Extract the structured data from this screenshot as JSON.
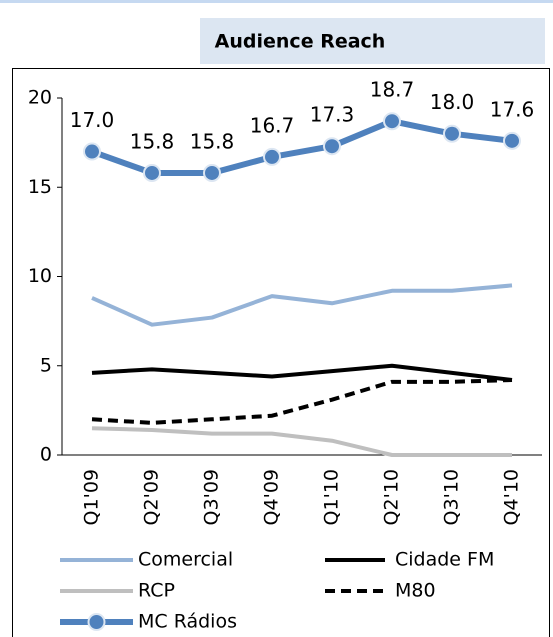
{
  "chart_data": {
    "type": "line",
    "title": "Audience Reach",
    "categories": [
      "Q1'09",
      "Q2'09",
      "Q3'09",
      "Q4'09",
      "Q1'10",
      "Q2'10",
      "Q3'10",
      "Q4'10"
    ],
    "ylim": [
      0,
      20
    ],
    "yticks": [
      0,
      5,
      10,
      15,
      20
    ],
    "grid": false,
    "series": [
      {
        "name": "Comercial",
        "color": "#95b3d7",
        "values": [
          8.8,
          7.3,
          7.7,
          8.9,
          8.5,
          9.2,
          9.2,
          9.5
        ]
      },
      {
        "name": "Cidade FM",
        "color": "#000000",
        "values": [
          4.6,
          4.8,
          4.6,
          4.4,
          4.7,
          5.0,
          4.6,
          4.2
        ]
      },
      {
        "name": "RCP",
        "color": "#bfbfbf",
        "values": [
          1.5,
          1.4,
          1.2,
          1.2,
          0.8,
          0,
          0,
          0
        ]
      },
      {
        "name": "M80",
        "color": "#000000",
        "dashed": true,
        "values": [
          2.0,
          1.8,
          2.0,
          2.2,
          3.1,
          4.1,
          4.1,
          4.2
        ]
      },
      {
        "name": "MC Rádios",
        "color": "#4f81bd",
        "marker": "circle",
        "values": [
          17.0,
          15.8,
          15.8,
          16.7,
          17.3,
          18.7,
          18.0,
          17.6
        ],
        "value_labels": [
          "17.0",
          "15.8",
          "15.8",
          "16.7",
          "17.3",
          "18.7",
          "18.0",
          "17.6"
        ]
      }
    ]
  }
}
